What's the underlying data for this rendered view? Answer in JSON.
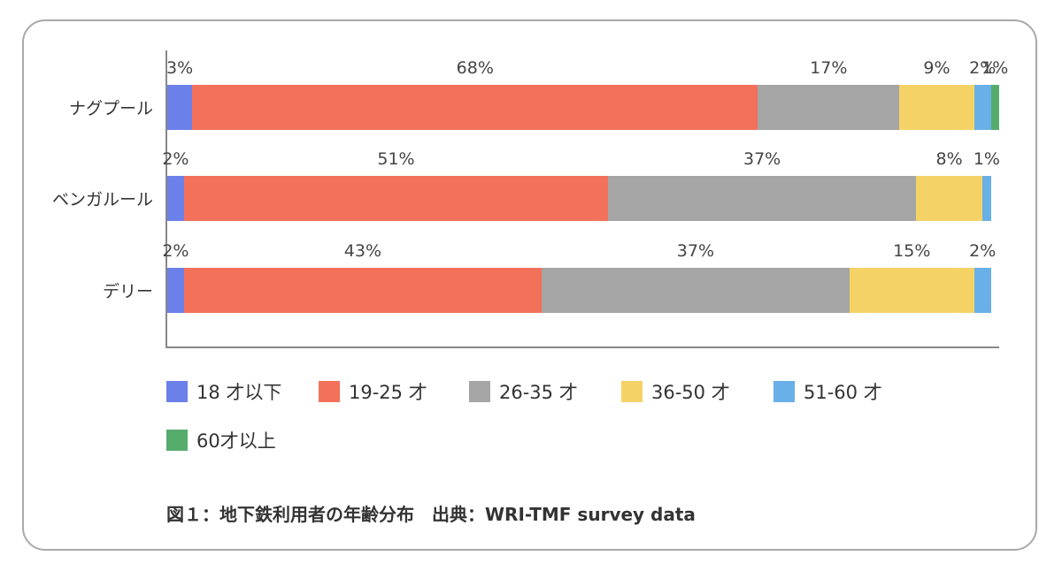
{
  "chart_data": {
    "type": "bar",
    "orientation": "horizontal",
    "stacked": true,
    "normalized_percent": true,
    "categories": [
      "ナグプール",
      "ベンガルール",
      "デリー"
    ],
    "series": [
      {
        "name": "18 才以下",
        "color": "#6b80e8",
        "values": [
          3,
          2,
          2
        ]
      },
      {
        "name": "19-25 才",
        "color": "#f3715a",
        "values": [
          68,
          51,
          43
        ]
      },
      {
        "name": "26-35 才",
        "color": "#a5a5a5",
        "values": [
          17,
          37,
          37
        ]
      },
      {
        "name": "36-50 才",
        "color": "#f4d266",
        "values": [
          9,
          8,
          15
        ]
      },
      {
        "name": "51-60 才",
        "color": "#69b0e8",
        "values": [
          2,
          1,
          2
        ]
      },
      {
        "name": "60才以上",
        "color": "#56ac6c",
        "values": [
          1,
          0,
          0
        ]
      }
    ],
    "data_labels": [
      [
        "3%",
        "68%",
        "17%",
        "9%",
        "2%",
        "1%"
      ],
      [
        "2%",
        "51%",
        "37%",
        "8%",
        "1%"
      ],
      [
        "2%",
        "43%",
        "37%",
        "15%",
        "2%"
      ]
    ],
    "title": "",
    "caption": "図１：地下鉄利用者の年齢分布　出典：WRI-TMF survey data",
    "xlabel": "",
    "ylabel": "",
    "xlim": [
      0,
      100
    ],
    "grid": false,
    "legend_position": "bottom"
  },
  "rows": [
    {
      "label": "ナグプール"
    },
    {
      "label": "ベンガルール"
    },
    {
      "label": "デリー"
    }
  ],
  "legend": [
    {
      "label": "18 才以下"
    },
    {
      "label": "19-25 才"
    },
    {
      "label": "26-35 才"
    },
    {
      "label": "36-50 才"
    },
    {
      "label": "51-60 才"
    },
    {
      "label": "60才以上"
    }
  ],
  "caption": "図１：地下鉄利用者の年齢分布　出典：WRI-TMF survey data"
}
